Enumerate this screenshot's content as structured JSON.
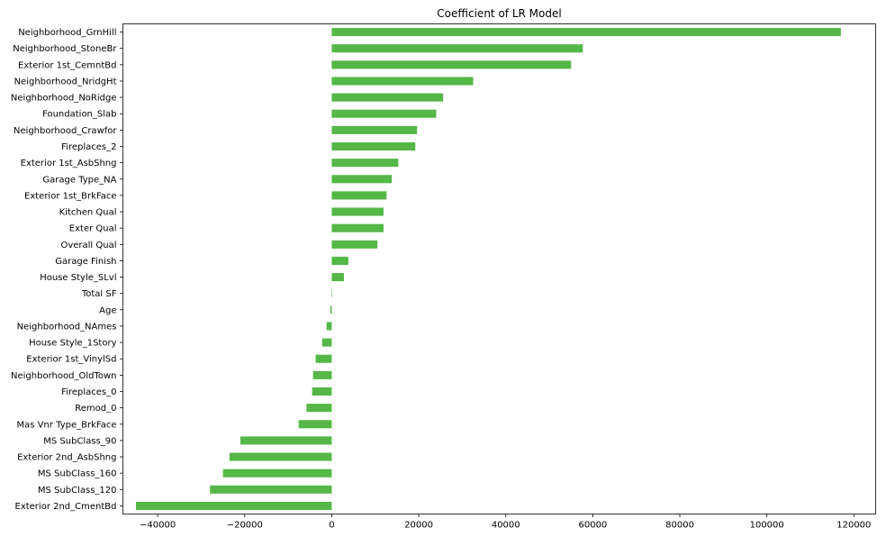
{
  "chart_data": {
    "type": "bar",
    "orientation": "horizontal",
    "title": "Coefficient of LR Model",
    "xlabel": "",
    "ylabel": "",
    "bar_color": "#55b748",
    "xlim": [
      -48000,
      125000
    ],
    "x_ticks": [
      -40000,
      -20000,
      0,
      20000,
      40000,
      60000,
      80000,
      100000,
      120000
    ],
    "x_tick_labels": [
      "−40000",
      "−20000",
      "0",
      "20000",
      "40000",
      "60000",
      "80000",
      "100000",
      "120000"
    ],
    "grid": false,
    "categories": [
      "Neighborhood_GrnHill",
      "Neighborhood_StoneBr",
      "Exterior 1st_CemntBd",
      "Neighborhood_NridgHt",
      "Neighborhood_NoRidge",
      "Foundation_Slab",
      "Neighborhood_Crawfor",
      "Fireplaces_2",
      "Exterior 1st_AsbShng",
      "Garage Type_NA",
      "Exterior 1st_BrkFace",
      "Kitchen Qual",
      "Exter Qual",
      "Overall Qual",
      "Garage Finish",
      "House Style_SLvl",
      "Total SF",
      "Age",
      "Neighborhood_NAmes",
      "House Style_1Story",
      "Exterior 1st_VinylSd",
      "Neighborhood_OldTown",
      "Fireplaces_0",
      "Remod_0",
      "Mas Vnr Type_BrkFace",
      "MS SubClass_90",
      "Exterior 2nd_AsbShng",
      "MS SubClass_160",
      "MS SubClass_120",
      "Exterior 2nd_CmentBd"
    ],
    "values": [
      117000,
      57700,
      55000,
      32500,
      25600,
      24000,
      19600,
      19200,
      15300,
      13800,
      12600,
      11900,
      11900,
      10500,
      3800,
      2800,
      100,
      -300,
      -1200,
      -2200,
      -3700,
      -4300,
      -4500,
      -5800,
      -7600,
      -21000,
      -23500,
      -25000,
      -28000,
      -45000
    ]
  }
}
